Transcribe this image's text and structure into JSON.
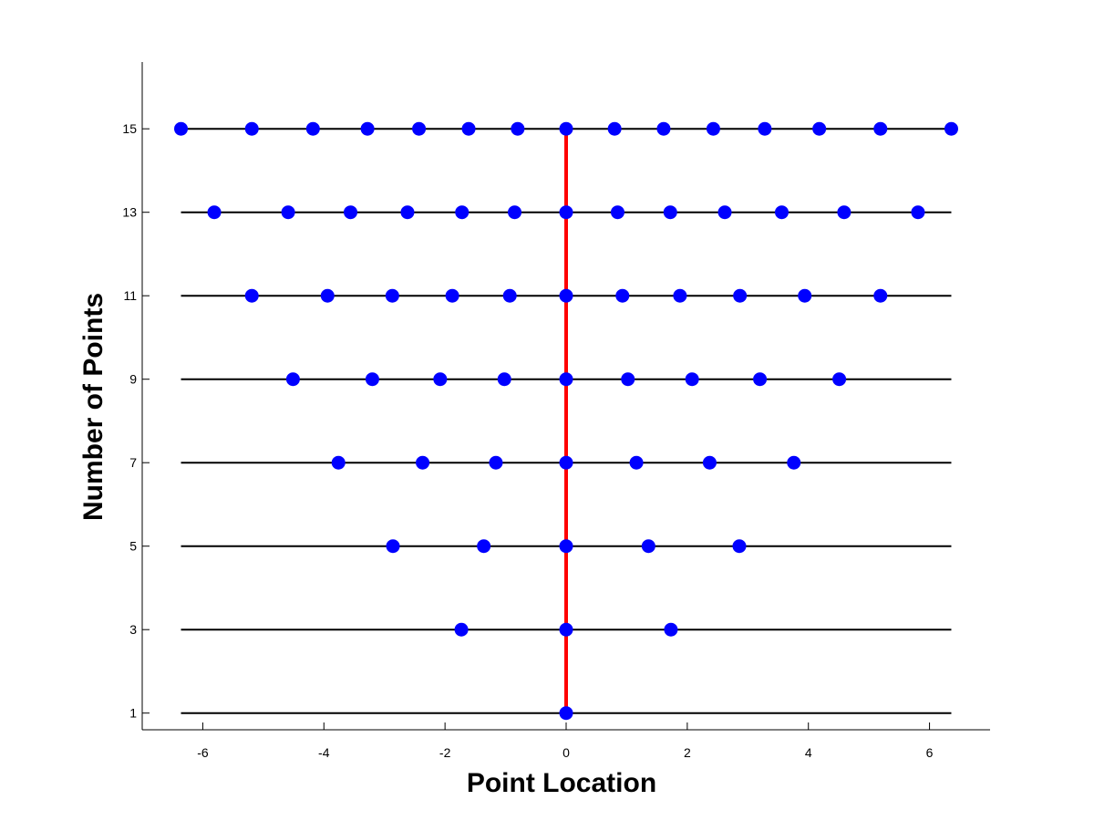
{
  "chart_data": {
    "type": "scatter",
    "title": "",
    "xlabel": "Point Location",
    "ylabel": "Number of Points",
    "xlim": [
      -7,
      7
    ],
    "ylim": [
      0.6,
      16.6
    ],
    "x_ticks": [
      -6,
      -4,
      -2,
      0,
      2,
      4,
      6
    ],
    "y_ticks": [
      1,
      3,
      5,
      7,
      9,
      11,
      13,
      15
    ],
    "grid": false,
    "colors": {
      "points": "#0000ff",
      "center_line": "#ff0000",
      "row_lines": "#000000"
    },
    "row_line_x_range": [
      -6.36,
      6.36
    ],
    "center_line": {
      "x": 0,
      "y_range": [
        1,
        15
      ]
    },
    "rows": [
      {
        "n": 1,
        "x": [
          0
        ]
      },
      {
        "n": 3,
        "x": [
          -1.73,
          0,
          1.73
        ]
      },
      {
        "n": 5,
        "x": [
          -2.86,
          -1.36,
          0,
          1.36,
          2.86
        ]
      },
      {
        "n": 7,
        "x": [
          -3.76,
          -2.37,
          -1.16,
          0,
          1.16,
          2.37,
          3.76
        ]
      },
      {
        "n": 9,
        "x": [
          -4.51,
          -3.2,
          -2.08,
          -1.02,
          0,
          1.02,
          2.08,
          3.2,
          4.51
        ]
      },
      {
        "n": 11,
        "x": [
          -5.19,
          -3.94,
          -2.87,
          -1.88,
          -0.93,
          0,
          0.93,
          1.88,
          2.87,
          3.94,
          5.19
        ]
      },
      {
        "n": 13,
        "x": [
          -5.81,
          -4.59,
          -3.56,
          -2.62,
          -1.72,
          -0.85,
          0,
          0.85,
          1.72,
          2.62,
          3.56,
          4.59,
          5.81
        ]
      },
      {
        "n": 15,
        "x": [
          -6.36,
          -5.19,
          -4.18,
          -3.28,
          -2.43,
          -1.61,
          -0.8,
          0,
          0.8,
          1.61,
          2.43,
          3.28,
          4.18,
          5.19,
          6.36
        ]
      }
    ]
  }
}
